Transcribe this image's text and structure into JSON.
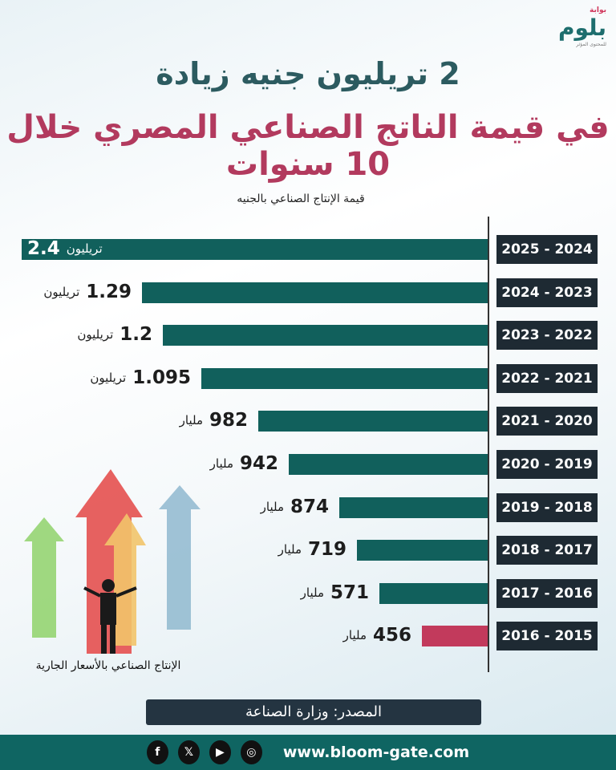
{
  "logo": {
    "small": "بوابة",
    "name": "بلوم",
    "tagline": "للمحتوى المؤثر"
  },
  "title_line1": "2 تريليون جنيه زيادة",
  "title_line2": "في قيمة الناتج الصناعي المصري خلال 10 سنوات",
  "colors": {
    "bar": "#11605c",
    "highlight": "#c23a5c",
    "label_bg": "#1e2a33",
    "title1": "#2c5b60",
    "title2": "#b23a5e",
    "footer": "#0f6562"
  },
  "chart_data": {
    "type": "bar",
    "orientation": "horizontal",
    "title": "قيمة الإنتاج الصناعي بالجنيه",
    "categories": [
      "2025 - 2024",
      "2024 - 2023",
      "2023 - 2022",
      "2022 - 2021",
      "2021 - 2020",
      "2020 - 2019",
      "2019 - 2018",
      "2018 - 2017",
      "2017 - 2016",
      "2016 - 2015"
    ],
    "values_egp_billion": [
      2400,
      1290,
      1200,
      1095,
      982,
      942,
      874,
      719,
      571,
      456
    ],
    "labels": [
      {
        "n": "2.4",
        "u": "تريليون"
      },
      {
        "n": "1.29",
        "u": "تريليون"
      },
      {
        "n": "1.2",
        "u": "تريليون"
      },
      {
        "n": "1.095",
        "u": "تريليون"
      },
      {
        "n": "982",
        "u": "مليار"
      },
      {
        "n": "942",
        "u": "مليار"
      },
      {
        "n": "874",
        "u": "مليار"
      },
      {
        "n": "719",
        "u": "مليار"
      },
      {
        "n": "571",
        "u": "مليار"
      },
      {
        "n": "456",
        "u": "مليار"
      }
    ],
    "highlight_category": "2016 - 2015",
    "caption": "الإنتاج الصناعي بالأسعار الجارية"
  },
  "source": "المصدر: وزارة الصناعة",
  "footer": {
    "url": "www.bloom-gate.com",
    "social": [
      "facebook",
      "x",
      "youtube",
      "instagram"
    ]
  }
}
